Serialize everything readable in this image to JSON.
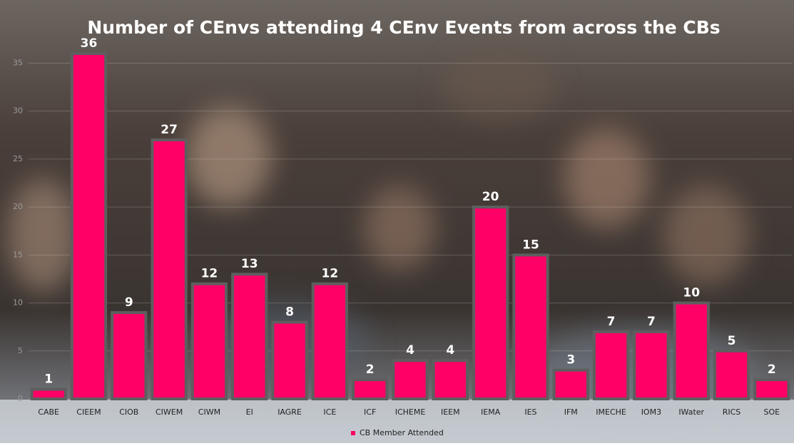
{
  "chart_data": {
    "type": "bar",
    "title": "Number of CEnvs attending 4 CEnv Events from across the CBs",
    "categories": [
      "CABE",
      "CIEEM",
      "CIOB",
      "CIWEM",
      "CIWM",
      "EI",
      "IAGRE",
      "ICE",
      "ICF",
      "ICHEME",
      "IEEM",
      "IEMA",
      "IES",
      "IFM",
      "IMECHE",
      "IOM3",
      "IWater",
      "RICS",
      "SOE"
    ],
    "series": [
      {
        "name": "CB Member Attended",
        "color": "#ff0066",
        "values": [
          1,
          36,
          9,
          27,
          12,
          13,
          8,
          12,
          2,
          4,
          4,
          20,
          15,
          3,
          7,
          7,
          10,
          5,
          2
        ]
      }
    ],
    "ylim": [
      0,
      36
    ],
    "yticks": [
      0,
      5,
      10,
      15,
      20,
      25,
      30,
      35
    ],
    "grid": true,
    "legend": "bottom"
  }
}
